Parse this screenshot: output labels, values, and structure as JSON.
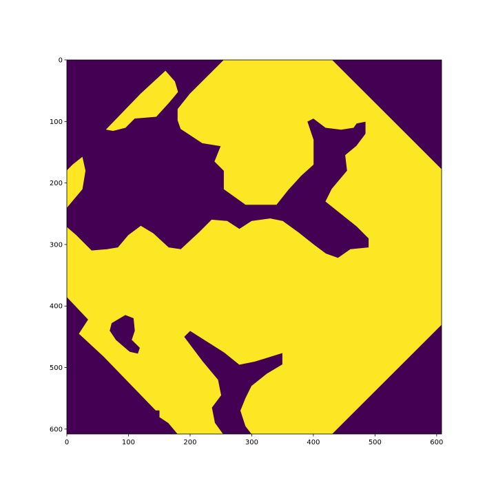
{
  "chart_data": {
    "type": "heatmap",
    "title": "",
    "xlabel": "",
    "ylabel": "",
    "xlim": [
      0,
      608
    ],
    "ylim": [
      608,
      0
    ],
    "x_ticks": [
      0,
      100,
      200,
      300,
      400,
      500,
      600
    ],
    "y_ticks": [
      0,
      100,
      200,
      300,
      400,
      500,
      600
    ],
    "x_tick_labels": [
      "0",
      "100",
      "200",
      "300",
      "400",
      "500",
      "600"
    ],
    "y_tick_labels": [
      "0",
      "100",
      "200",
      "300",
      "400",
      "500",
      "600"
    ],
    "colormap": "viridis",
    "values_present": [
      0,
      1
    ],
    "colors": {
      "background": "#440154",
      "foreground": "#fde725"
    },
    "grid": false,
    "regions": [
      {
        "name": "left-upper-strip",
        "value": 1,
        "polygon": [
          [
            160,
            18
          ],
          [
            175,
            35
          ],
          [
            180,
            52
          ],
          [
            165,
            70
          ],
          [
            145,
            92
          ],
          [
            110,
            95
          ],
          [
            95,
            110
          ],
          [
            75,
            115
          ],
          [
            64,
            113
          ],
          [
            120,
            55
          ]
        ]
      },
      {
        "name": "upper-left-edge",
        "value": 1,
        "polygon": [
          [
            0,
            180
          ],
          [
            10,
            170
          ],
          [
            25,
            158
          ],
          [
            30,
            180
          ],
          [
            25,
            210
          ],
          [
            10,
            228
          ],
          [
            0,
            240
          ]
        ]
      },
      {
        "name": "main-shape",
        "value": 1,
        "polygon": [
          [
            255,
            0
          ],
          [
            430,
            0
          ],
          [
            608,
            178
          ],
          [
            608,
            430
          ],
          [
            430,
            608
          ],
          [
            300,
            608
          ],
          [
            290,
            595
          ],
          [
            282,
            570
          ],
          [
            290,
            550
          ],
          [
            300,
            530
          ],
          [
            325,
            510
          ],
          [
            350,
            495
          ],
          [
            350,
            476
          ],
          [
            305,
            490
          ],
          [
            280,
            495
          ],
          [
            255,
            475
          ],
          [
            200,
            440
          ],
          [
            190,
            450
          ],
          [
            220,
            490
          ],
          [
            245,
            520
          ],
          [
            250,
            545
          ],
          [
            235,
            565
          ],
          [
            240,
            590
          ],
          [
            253,
            608
          ],
          [
            180,
            608
          ],
          [
            165,
            590
          ],
          [
            150,
            580
          ],
          [
            145,
            570
          ],
          [
            60,
            482
          ],
          [
            20,
            445
          ],
          [
            35,
            422
          ],
          [
            0,
            385
          ],
          [
            0,
            272
          ],
          [
            15,
            285
          ],
          [
            40,
            310
          ],
          [
            65,
            308
          ],
          [
            83,
            305
          ],
          [
            100,
            285
          ],
          [
            120,
            270
          ],
          [
            140,
            282
          ],
          [
            165,
            305
          ],
          [
            185,
            308
          ],
          [
            215,
            280
          ],
          [
            235,
            260
          ],
          [
            260,
            262
          ],
          [
            280,
            275
          ],
          [
            300,
            262
          ],
          [
            330,
            258
          ],
          [
            350,
            262
          ],
          [
            375,
            280
          ],
          [
            400,
            300
          ],
          [
            420,
            315
          ],
          [
            440,
            322
          ],
          [
            460,
            308
          ],
          [
            490,
            305
          ],
          [
            490,
            290
          ],
          [
            470,
            270
          ],
          [
            420,
            230
          ],
          [
            430,
            210
          ],
          [
            455,
            180
          ],
          [
            452,
            155
          ],
          [
            470,
            140
          ],
          [
            485,
            120
          ],
          [
            485,
            100
          ],
          [
            470,
            103
          ],
          [
            465,
            110
          ],
          [
            445,
            113
          ],
          [
            420,
            110
          ],
          [
            400,
            95
          ],
          [
            390,
            100
          ],
          [
            400,
            130
          ],
          [
            400,
            170
          ],
          [
            380,
            188
          ],
          [
            360,
            210
          ],
          [
            340,
            235
          ],
          [
            290,
            235
          ],
          [
            255,
            210
          ],
          [
            255,
            180
          ],
          [
            240,
            165
          ],
          [
            250,
            140
          ],
          [
            220,
            135
          ],
          [
            185,
            112
          ],
          [
            180,
            98
          ],
          [
            180,
            80
          ],
          [
            200,
            55
          ]
        ]
      },
      {
        "name": "lower-left-hole",
        "value": 0,
        "polygon": [
          [
            73,
            428
          ],
          [
            95,
            415
          ],
          [
            108,
            420
          ],
          [
            110,
            440
          ],
          [
            105,
            455
          ],
          [
            118,
            468
          ],
          [
            115,
            477
          ],
          [
            102,
            474
          ],
          [
            80,
            455
          ],
          [
            70,
            440
          ]
        ]
      },
      {
        "name": "lower-left-nub",
        "value": 0,
        "polygon": [
          [
            140,
            570
          ],
          [
            150,
            570
          ],
          [
            150,
            580
          ],
          [
            140,
            580
          ]
        ]
      }
    ]
  }
}
